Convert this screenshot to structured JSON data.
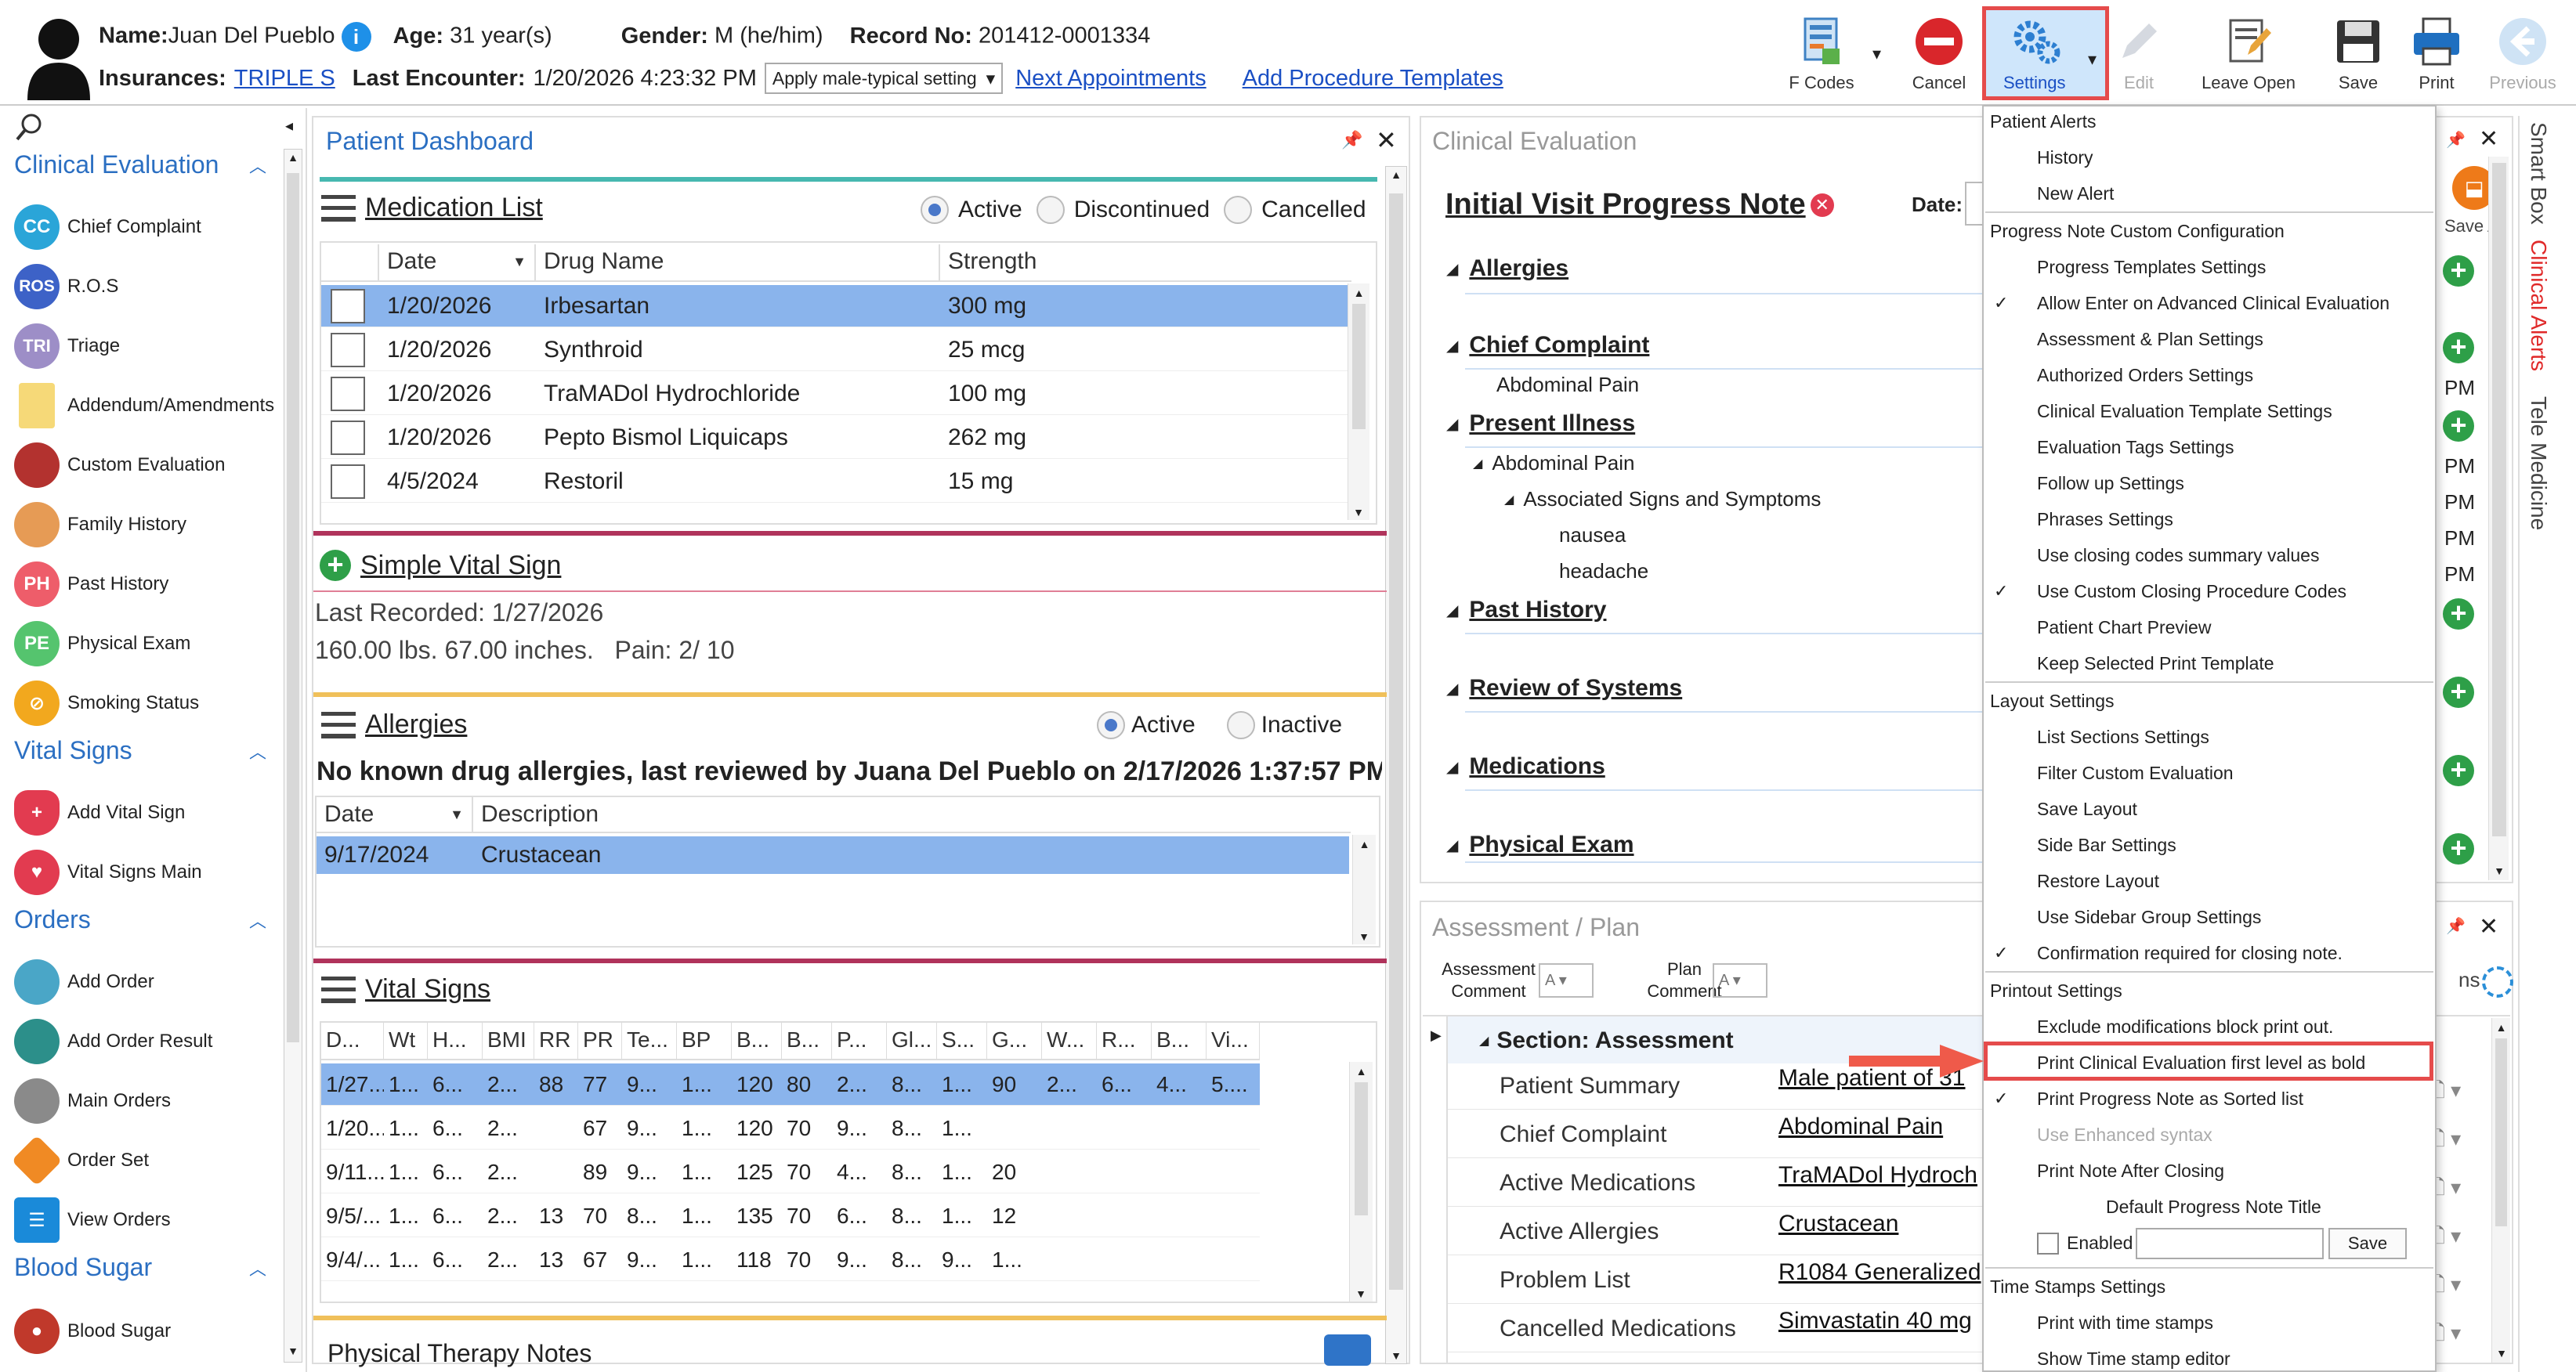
{
  "header": {
    "name_label": "Name:",
    "name": "Juan Del Pueblo",
    "age_label": "Age:",
    "age": "31 year(s)",
    "gender_label": "Gender:",
    "gender": "M (he/him)",
    "record_label": "Record No:",
    "record": "201412-0001334",
    "ins_label": "Insurances:",
    "ins": "TRIPLE S",
    "last_enc_label": "Last Encounter:",
    "last_enc": "1/20/2026 4:23:32 PM",
    "setting_select": "Apply male-typical setting",
    "next_appt": "Next Appointments",
    "add_proc": "Add Procedure Templates"
  },
  "toolbar": {
    "fcodes": "F Codes",
    "cancel": "Cancel",
    "settings": "Settings",
    "edit": "Edit",
    "leave_open": "Leave Open",
    "save": "Save",
    "print": "Print",
    "previous": "Previous"
  },
  "sidebar": {
    "groups": {
      "clinical": "Clinical Evaluation",
      "vital": "Vital Signs",
      "orders": "Orders",
      "blood": "Blood Sugar"
    },
    "items": [
      "Chief Complaint",
      "R.O.S",
      "Triage",
      "Addendum/Amendments",
      "Custom Evaluation",
      "Family History",
      "Past History",
      "Physical Exam",
      "Smoking Status",
      "Add Vital Sign",
      "Vital Signs Main",
      "Add Order",
      "Add Order Result",
      "Main Orders",
      "Order Set",
      "View Orders",
      "Blood Sugar"
    ],
    "abbr": {
      "cc": "CC",
      "ros": "ROS",
      "tri": "TRI",
      "ph": "PH",
      "pe": "PE"
    }
  },
  "dashboard": {
    "title": "Patient Dashboard",
    "med": {
      "title": "Medication List",
      "active": "Active",
      "discontinued": "Discontinued",
      "cancelled": "Cancelled",
      "cols": [
        "Date",
        "Drug Name",
        "Strength"
      ],
      "rows": [
        [
          "1/20/2026",
          "Irbesartan",
          "300 mg"
        ],
        [
          "1/20/2026",
          "Synthroid",
          "25 mcg"
        ],
        [
          "1/20/2026",
          "TraMADol Hydrochloride",
          "100 mg"
        ],
        [
          "1/20/2026",
          "Pepto Bismol Liquicaps",
          "262 mg"
        ],
        [
          "4/5/2024",
          "Restoril",
          "15 mg"
        ]
      ]
    },
    "simple": {
      "title": "Simple Vital Sign",
      "last": "Last Recorded: 1/27/2026",
      "vals": "160.00 lbs. 67.00 inches.   Pain: 2/ 10"
    },
    "allergies": {
      "title": "Allergies",
      "active": "Active",
      "inactive": "Inactive",
      "note": "No known drug allergies, last reviewed by Juana Del Pueblo on 2/17/2026 1:37:57 PM",
      "cols": [
        "Date",
        "Description"
      ],
      "rows": [
        [
          "9/17/2024",
          "Crustacean"
        ]
      ]
    },
    "vitals": {
      "title": "Vital Signs",
      "cols": [
        "D...",
        "Wt",
        "H...",
        "BMI",
        "RR",
        "PR",
        "Te...",
        "BP",
        "B...",
        "B...",
        "P...",
        "Gl...",
        "S...",
        "G...",
        "W...",
        "R...",
        "B...",
        "Vi..."
      ],
      "rows": [
        [
          "1/27...",
          "1...",
          "6...",
          "2...",
          "88",
          "77",
          "9...",
          "1...",
          "120",
          "80",
          "2...",
          "8...",
          "1...",
          "90",
          "2...",
          "6...",
          "4...",
          "5...."
        ],
        [
          "1/20...",
          "1...",
          "6...",
          "2...",
          "",
          "67",
          "9...",
          "1...",
          "120",
          "70",
          "9...",
          "8...",
          "1...",
          "",
          "",
          "",
          "",
          ""
        ],
        [
          "9/11...",
          "1...",
          "6...",
          "2...",
          "",
          "89",
          "9...",
          "1...",
          "125",
          "70",
          "4...",
          "8...",
          "1...",
          "20",
          "",
          "",
          "",
          ""
        ],
        [
          "9/5/...",
          "1...",
          "6...",
          "2...",
          "13",
          "70",
          "8...",
          "1...",
          "135",
          "70",
          "6...",
          "8...",
          "1...",
          "12",
          "",
          "",
          "",
          ""
        ],
        [
          "9/4/...",
          "1...",
          "6...",
          "2...",
          "13",
          "67",
          "9...",
          "1...",
          "118",
          "70",
          "9...",
          "8...",
          "9...",
          "1...",
          "",
          "",
          "",
          ""
        ]
      ]
    },
    "pt": "Physical Therapy Notes"
  },
  "ce": {
    "title": "Clinical Evaluation",
    "note_title": "Initial Visit Progress Note",
    "date_label": "Date:",
    "save_as": "Save As",
    "sections": [
      "Allergies",
      "Chief Complaint",
      "Present Illness",
      "Past History",
      "Review of Systems",
      "Medications",
      "Physical Exam"
    ],
    "cc_val": "Abdominal Pain",
    "pi_val": "Abdominal Pain",
    "assoc": "Associated Signs and Symptoms",
    "s1": "nausea",
    "s2": "headache",
    "pm": "PM"
  },
  "ap": {
    "title": "Assessment / Plan",
    "assess_comment": "Assessment Comment",
    "plan_comment": "Plan Comment",
    "section": "Section: Assessment",
    "rows": [
      [
        "Patient Summary",
        "Male patient of 31"
      ],
      [
        "Chief Complaint",
        "Abdominal Pain"
      ],
      [
        "Active Medications",
        "TraMADol Hydroch"
      ],
      [
        "Active Allergies",
        "Crustacean"
      ],
      [
        "Problem List",
        "R1084 Generalized"
      ],
      [
        "Cancelled Medications",
        "Simvastatin 40 mg"
      ]
    ],
    "ns": "ns"
  },
  "right_tabs": {
    "smart": "Smart Box",
    "alerts": "Clinical Alerts",
    "tele": "Tele Medicine"
  },
  "menu": {
    "patient_alerts": "Patient Alerts",
    "history": "History",
    "new_alert": "New Alert",
    "pn_config": "Progress Note Custom Configuration",
    "pn_items": [
      "Progress Templates Settings",
      "Allow Enter on Advanced Clinical Evaluation",
      "Assessment & Plan Settings",
      "Authorized Orders Settings",
      "Clinical Evaluation Template Settings",
      "Evaluation Tags Settings",
      "Follow up Settings",
      "Phrases Settings",
      "Use closing codes summary values",
      "Use Custom Closing Procedure Codes",
      "Patient Chart Preview",
      "Keep Selected Print Template"
    ],
    "layout": "Layout Settings",
    "layout_items": [
      "List Sections Settings",
      "Filter Custom Evaluation",
      "Save Layout",
      "Side Bar Settings",
      "Restore Layout",
      "Use Sidebar Group Settings",
      "Confirmation required for closing note."
    ],
    "printout": "Printout Settings",
    "print_items": [
      "Exclude modifications block print out.",
      "Print Clinical Evaluation first level as bold",
      "Print Progress Note as Sorted list",
      "Use Enhanced syntax",
      "Print Note After Closing"
    ],
    "default_title": "Default Progress Note Title",
    "enabled": "Enabled",
    "save": "Save",
    "timestamps": "Time Stamps Settings",
    "ts_items": [
      "Print with time stamps",
      "Show Time stamp editor"
    ],
    "check": "✓"
  },
  "colors": {
    "accent": "#2b6fc2",
    "highlight": "#e54b4b",
    "selected_row": "#8ab4ec"
  }
}
